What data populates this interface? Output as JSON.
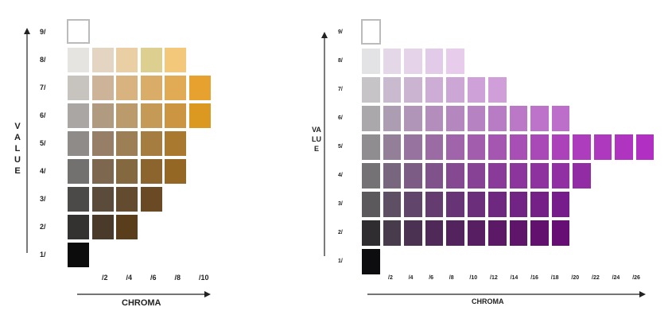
{
  "charts": [
    {
      "name": "yellow-red-chart",
      "value_axis_label": "VALUE",
      "chroma_axis_label": "CHROMA",
      "value_labels": [
        "9/",
        "8/",
        "7/",
        "6/",
        "5/",
        "4/",
        "3/",
        "2/",
        "1/"
      ],
      "chroma_labels": [
        "/2",
        "/4",
        "/6",
        "/8",
        "/10"
      ],
      "rows": [
        {
          "value": "9/",
          "colors": []
        },
        {
          "value": "8/",
          "colors": [
            "#e6e4e1",
            "#e3d5c1",
            "#ebcfa4",
            "#dccf8f",
            "#f3c87b"
          ]
        },
        {
          "value": "7/",
          "colors": [
            "#c7c3bf",
            "#cdb498",
            "#d8b37f",
            "#d9ad68",
            "#e1aa55",
            "#e6a12f"
          ]
        },
        {
          "value": "6/",
          "colors": [
            "#aaa6a3",
            "#b09a80",
            "#bb9b6c",
            "#c49a56",
            "#cb9542",
            "#dc9922"
          ]
        },
        {
          "value": "5/",
          "colors": [
            "#8e8b88",
            "#967f66",
            "#9d7f55",
            "#a67d40",
            "#a97930"
          ]
        },
        {
          "value": "4/",
          "colors": [
            "#737170",
            "#7d684f",
            "#84683f",
            "#8c642e",
            "#946724"
          ]
        },
        {
          "value": "3/",
          "colors": [
            "#4b4a49",
            "#5b4b3b",
            "#634b30",
            "#6a4a24"
          ]
        },
        {
          "value": "2/",
          "colors": [
            "#333231",
            "#4a3a2a",
            "#5a3d1b"
          ]
        },
        {
          "value": "1/",
          "colors": [
            "#0c0c0c"
          ]
        }
      ]
    },
    {
      "name": "purple-chart",
      "value_axis_label": "VALUE",
      "chroma_axis_label": "CHROMA",
      "value_labels": [
        "9/",
        "8/",
        "7/",
        "6/",
        "5/",
        "4/",
        "3/",
        "2/",
        "1/"
      ],
      "chroma_labels": [
        "/2",
        "/4",
        "/6",
        "/8",
        "/10",
        "/12",
        "/14",
        "/16",
        "/18",
        "/20",
        "/22",
        "/24",
        "/26"
      ],
      "rows": [
        {
          "value": "9/",
          "colors": []
        },
        {
          "value": "8/",
          "colors": [
            "#e3e2e4",
            "#e3d7e8",
            "#e5d3ea",
            "#e2cbe8",
            "#e7ccec"
          ]
        },
        {
          "value": "7/",
          "colors": [
            "#c6c4c7",
            "#c9bacf",
            "#cbb3d2",
            "#cdacd5",
            "#cca6d4",
            "#cea2d8",
            "#d09fda"
          ]
        },
        {
          "value": "6/",
          "colors": [
            "#aaa8ab",
            "#ad9db3",
            "#b195b9",
            "#b38ebc",
            "#b488bf",
            "#b782c2",
            "#b87cc4",
            "#ba78c7",
            "#bc73c9",
            "#bd6ecb"
          ]
        },
        {
          "value": "5/",
          "colors": [
            "#8f8d90",
            "#937f98",
            "#97749f",
            "#9b6ca4",
            "#9f64a9",
            "#a25dad",
            "#a556b1",
            "#a74fb4",
            "#a948b7",
            "#ab42ba",
            "#ad3dbc",
            "#ae38be",
            "#af34c0",
            "#b12fc2"
          ]
        },
        {
          "value": "4/",
          "colors": [
            "#757276",
            "#78667e",
            "#7c5b85",
            "#80528b",
            "#844991",
            "#874296",
            "#8a3b9a",
            "#8c369d",
            "#8e32a0",
            "#9030a2",
            "#922ca4"
          ]
        },
        {
          "value": "3/",
          "colors": [
            "#5b595c",
            "#5e4f64",
            "#61456a",
            "#643c70",
            "#673575",
            "#6b2e7a",
            "#6e287f",
            "#712483",
            "#742087",
            "#771c8b"
          ]
        },
        {
          "value": "2/",
          "colors": [
            "#2f2d30",
            "#473b4c",
            "#4b3152",
            "#4f2957",
            "#53235d",
            "#571e62",
            "#5b1966",
            "#5f156a",
            "#63116f",
            "#660e73"
          ]
        },
        {
          "value": "1/",
          "colors": [
            "#0d0c0e"
          ]
        }
      ]
    }
  ]
}
